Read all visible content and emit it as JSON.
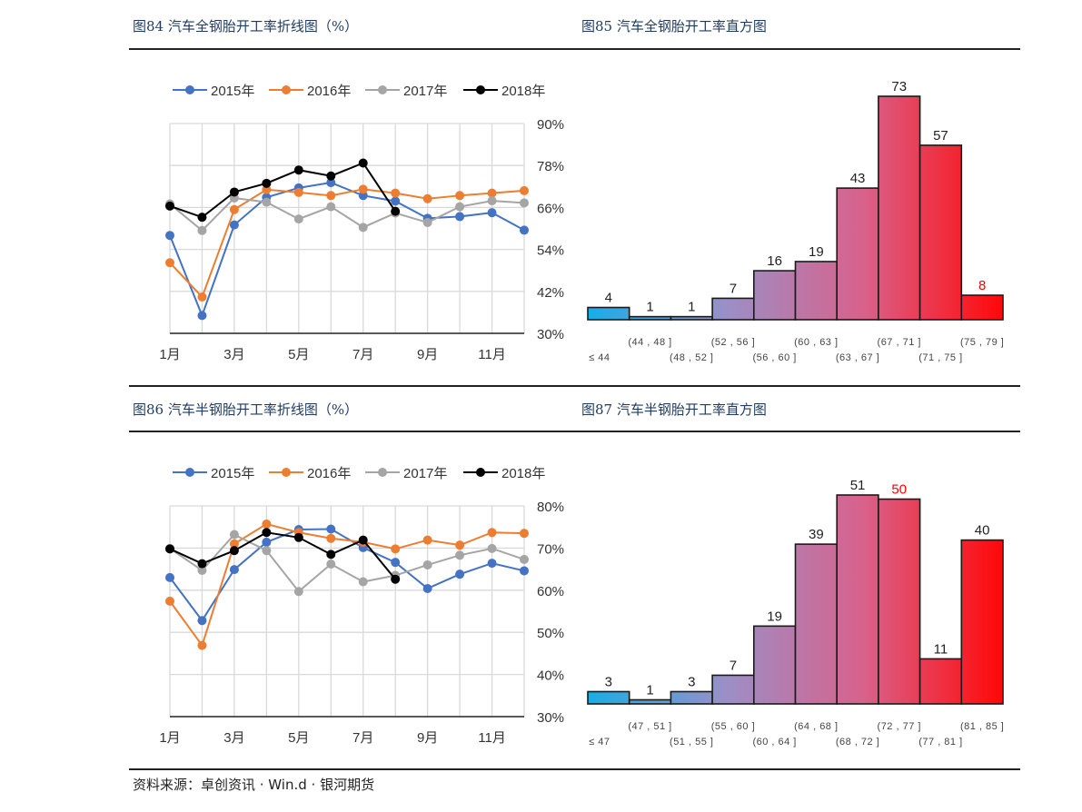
{
  "page": {
    "source_text": "资料来源：卓创资讯 · Win.d · 银河期货"
  },
  "chart_data": [
    {
      "id": "fig84",
      "type": "line",
      "title": "图84  汽车全钢胎开工率折线图（%）",
      "xlabel": "",
      "ylabel": "",
      "x": [
        "1月",
        "2月",
        "3月",
        "4月",
        "5月",
        "6月",
        "7月",
        "8月",
        "9月",
        "10月",
        "11月",
        "12月"
      ],
      "x_tick_labels": [
        "1月",
        "3月",
        "5月",
        "7月",
        "9月",
        "11月"
      ],
      "y_ticks": [
        "30%",
        "42%",
        "54%",
        "66%",
        "78%",
        "90%"
      ],
      "ylim": [
        30,
        90
      ],
      "y_axis_side": "right",
      "grid": true,
      "legend": "top",
      "series": [
        {
          "name": "2015年",
          "color": "#4472c4",
          "values": [
            58.0,
            35.1,
            61.0,
            68.9,
            71.6,
            73.1,
            69.4,
            67.8,
            62.9,
            63.4,
            64.5,
            59.5
          ]
        },
        {
          "name": "2016年",
          "color": "#ed7d31",
          "values": [
            50.2,
            40.4,
            65.4,
            71.1,
            70.3,
            69.4,
            71.2,
            70.1,
            68.5,
            69.4,
            70.1,
            70.8
          ]
        },
        {
          "name": "2017年",
          "color": "#a5a5a5",
          "values": [
            67.0,
            59.4,
            68.7,
            67.5,
            62.7,
            66.2,
            60.3,
            64.4,
            61.7,
            66.2,
            67.9,
            67.3
          ]
        },
        {
          "name": "2018年",
          "color": "#000000",
          "values": [
            66.4,
            63.2,
            70.4,
            72.9,
            76.7,
            75.0,
            78.7,
            64.9,
            null,
            null,
            null,
            null
          ]
        }
      ]
    },
    {
      "id": "fig85",
      "type": "bar",
      "title": "图85  汽车全钢胎开工率直方图",
      "categories": [
        "≤ 44",
        "(44 , 48 ]",
        "(48 , 52 ]",
        "(52 , 56 ]",
        "(56 , 60 ]",
        "(60 , 63 ]",
        "(63 , 67 ]",
        "(67 , 71 ]",
        "(71 , 75 ]",
        "(75 , 79 ]"
      ],
      "values": [
        4,
        1,
        1,
        7,
        16,
        19,
        43,
        73,
        57,
        8
      ],
      "highlight_index": 9,
      "highlight_label_color": "#ff0000",
      "gradient": [
        "#17aee8",
        "#9b8fc6",
        "#d9618a",
        "#ff0808"
      ],
      "ylim": [
        0,
        73
      ],
      "xlabel": "",
      "ylabel": ""
    },
    {
      "id": "fig86",
      "type": "line",
      "title": "图86  汽车半钢胎开工率折线图（%）",
      "xlabel": "",
      "ylabel": "",
      "x": [
        "1月",
        "2月",
        "3月",
        "4月",
        "5月",
        "6月",
        "7月",
        "8月",
        "9月",
        "10月",
        "11月",
        "12月"
      ],
      "x_tick_labels": [
        "1月",
        "3月",
        "5月",
        "7月",
        "9月",
        "11月"
      ],
      "y_ticks": [
        "30%",
        "40%",
        "50%",
        "60%",
        "70%",
        "80%"
      ],
      "ylim": [
        30,
        80
      ],
      "y_axis_side": "right",
      "grid": true,
      "legend": "top",
      "series": [
        {
          "name": "2015年",
          "color": "#4472c4",
          "values": [
            63.0,
            52.8,
            64.9,
            71.4,
            74.4,
            74.5,
            70.1,
            66.6,
            60.4,
            63.8,
            66.4,
            64.6
          ]
        },
        {
          "name": "2016年",
          "color": "#ed7d31",
          "values": [
            57.4,
            46.9,
            71.0,
            75.7,
            73.7,
            72.3,
            71.4,
            69.8,
            71.9,
            70.7,
            73.7,
            73.5
          ]
        },
        {
          "name": "2017年",
          "color": "#a5a5a5",
          "values": [
            69.9,
            64.7,
            73.2,
            69.4,
            59.7,
            66.2,
            62.0,
            63.5,
            66.0,
            68.3,
            69.9,
            67.3
          ]
        },
        {
          "name": "2018年",
          "color": "#000000",
          "values": [
            69.8,
            66.3,
            69.4,
            73.7,
            72.5,
            68.5,
            71.9,
            62.6,
            null,
            null,
            null,
            null
          ]
        }
      ]
    },
    {
      "id": "fig87",
      "type": "bar",
      "title": "图87  汽车半钢胎开工率直方图",
      "categories": [
        "≤ 47",
        "(47 , 51 ]",
        "(51 , 55 ]",
        "(55 , 60 ]",
        "(60 , 64 ]",
        "(64 , 68 ]",
        "(68 , 72 ]",
        "(72 , 77 ]",
        "(77 , 81 ]",
        "(81 , 85 ]"
      ],
      "values": [
        3,
        1,
        3,
        7,
        19,
        39,
        51,
        50,
        11,
        40
      ],
      "highlight_index": 7,
      "highlight_label_color": "#ff0000",
      "gradient": [
        "#17aee8",
        "#9b8fc6",
        "#d9618a",
        "#ff0808"
      ],
      "ylim": [
        0,
        51
      ],
      "xlabel": "",
      "ylabel": ""
    }
  ]
}
